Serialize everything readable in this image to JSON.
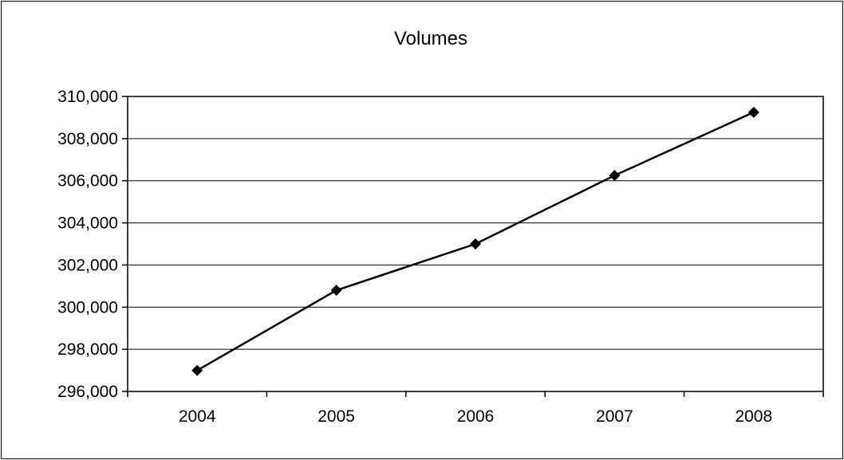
{
  "chart_data": {
    "type": "line",
    "title": "Volumes",
    "xlabel": "",
    "ylabel": "",
    "categories": [
      "2004",
      "2005",
      "2006",
      "2007",
      "2008"
    ],
    "series": [
      {
        "values": [
          297000,
          300800,
          303000,
          306250,
          309250
        ],
        "marker": "diamond",
        "color": "#000000"
      }
    ],
    "ylim": [
      296000,
      310000
    ],
    "yticks": [
      296000,
      298000,
      300000,
      302000,
      304000,
      306000,
      308000,
      310000
    ],
    "ytick_labels": [
      "296,000",
      "298,000",
      "300,000",
      "302,000",
      "304,000",
      "306,000",
      "308,000",
      "310,000"
    ],
    "grid": "horizontal",
    "legend": "none"
  }
}
